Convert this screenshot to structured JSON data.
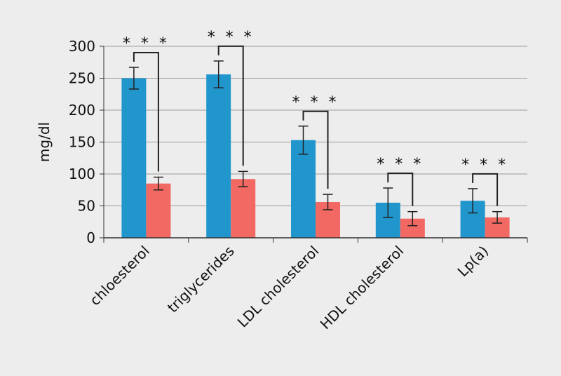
{
  "chart_data": {
    "type": "bar",
    "ylabel": "mg/dl",
    "ylim": [
      0,
      300
    ],
    "yticks": [
      0,
      50,
      100,
      150,
      200,
      250,
      300
    ],
    "grid": true,
    "categories": [
      "chloesterol",
      "triglycerides",
      "LDL cholesterol",
      "HDL cholesterol",
      "Lp(a)"
    ],
    "series": [
      {
        "color": "#2196cc",
        "values": [
          250,
          256,
          153,
          55,
          58
        ],
        "errors": [
          17,
          21,
          22,
          23,
          19
        ]
      },
      {
        "color": "#f26862",
        "values": [
          85,
          92,
          56,
          30,
          32
        ],
        "errors": [
          10,
          12,
          12,
          11,
          9
        ]
      }
    ],
    "significance": [
      "* * *",
      "* * *",
      "* * *",
      "* * *",
      "* * *"
    ]
  }
}
